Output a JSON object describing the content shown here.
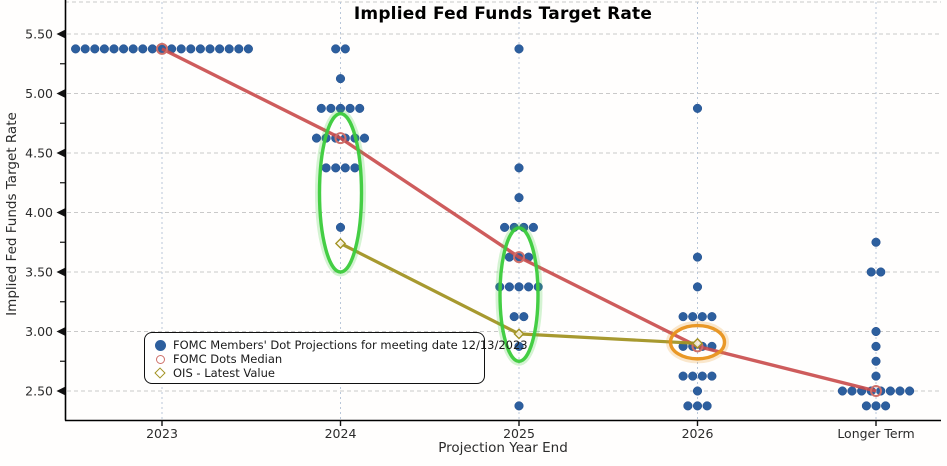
{
  "chart_data": {
    "type": "scatter",
    "title": "Implied Fed Funds Target Rate",
    "xlabel": "Projection Year End",
    "ylabel": "Implied Fed Funds Target Rate",
    "categories": [
      "2023",
      "2024",
      "2025",
      "2026",
      "Longer Term"
    ],
    "y_ticks": [
      {
        "value": 5.5,
        "label": "5.50"
      },
      {
        "value": 5.0,
        "label": "5.00"
      },
      {
        "value": 4.5,
        "label": "4.50"
      },
      {
        "value": 4.0,
        "label": "4.00"
      },
      {
        "value": 3.5,
        "label": "3.50"
      },
      {
        "value": 3.0,
        "label": "3.00"
      },
      {
        "value": 2.5,
        "label": "2.50"
      }
    ],
    "y_minor_ticks": [
      5.25,
      4.75,
      4.25,
      3.75,
      3.25,
      2.75
    ],
    "ylim": [
      2.25,
      5.78
    ],
    "grid": true,
    "legend_position": "lower-left",
    "colors": {
      "dots": "#2D5F9E",
      "median_line": "#C94A4A",
      "median_ring": "#CE6F69",
      "ois": "#A29324",
      "highlight_green": "#3CCB3C",
      "highlight_orange": "#E8941E"
    },
    "series": [
      {
        "name": "FOMC Members' Dot Projections for meeting date 12/13/2023",
        "type": "dot-cluster",
        "color": "#2D5F9E",
        "dot_groups": [
          [
            {
              "rate": 5.375,
              "count": 19
            }
          ],
          [
            {
              "rate": 5.375,
              "count": 2
            },
            {
              "rate": 5.125,
              "count": 1
            },
            {
              "rate": 4.875,
              "count": 5
            },
            {
              "rate": 4.625,
              "count": 6
            },
            {
              "rate": 4.375,
              "count": 4
            },
            {
              "rate": 3.875,
              "count": 1
            }
          ],
          [
            {
              "rate": 5.375,
              "count": 1
            },
            {
              "rate": 4.375,
              "count": 1
            },
            {
              "rate": 4.125,
              "count": 1
            },
            {
              "rate": 3.875,
              "count": 4
            },
            {
              "rate": 3.625,
              "count": 3
            },
            {
              "rate": 3.375,
              "count": 5
            },
            {
              "rate": 3.125,
              "count": 2
            },
            {
              "rate": 2.875,
              "count": 1
            },
            {
              "rate": 2.375,
              "count": 1
            }
          ],
          [
            {
              "rate": 4.875,
              "count": 1
            },
            {
              "rate": 3.625,
              "count": 1
            },
            {
              "rate": 3.375,
              "count": 1
            },
            {
              "rate": 3.125,
              "count": 4
            },
            {
              "rate": 2.875,
              "count": 4
            },
            {
              "rate": 2.625,
              "count": 4
            },
            {
              "rate": 2.5,
              "count": 1
            },
            {
              "rate": 2.375,
              "count": 3
            }
          ],
          [
            {
              "rate": 3.75,
              "count": 1
            },
            {
              "rate": 3.5,
              "count": 2
            },
            {
              "rate": 3.0,
              "count": 1
            },
            {
              "rate": 2.875,
              "count": 1
            },
            {
              "rate": 2.75,
              "count": 1
            },
            {
              "rate": 2.625,
              "count": 1
            },
            {
              "rate": 2.5,
              "count": 8
            },
            {
              "rate": 2.375,
              "count": 3
            }
          ]
        ]
      },
      {
        "name": "FOMC Dots Median",
        "type": "line-with-open-circle",
        "color": "#C94A4A",
        "values": [
          5.375,
          4.625,
          3.625,
          2.875,
          2.5
        ]
      },
      {
        "name": "OIS - Latest Value",
        "type": "line-with-open-diamond",
        "color": "#A29324",
        "values": [
          null,
          3.74,
          2.98,
          2.9,
          null
        ]
      }
    ],
    "annotations": [
      {
        "shape": "ellipse",
        "category_index": 1,
        "rate_range": [
          3.5,
          4.83
        ],
        "rx": 21,
        "color": "#3CCB3C"
      },
      {
        "shape": "ellipse",
        "category_index": 2,
        "rate_range": [
          2.75,
          3.87
        ],
        "rx": 19,
        "color": "#3CCB3C"
      },
      {
        "shape": "ellipse",
        "category_index": 3,
        "rate_range": [
          2.77,
          3.05
        ],
        "rx": 27,
        "color": "#E8941E"
      }
    ]
  }
}
